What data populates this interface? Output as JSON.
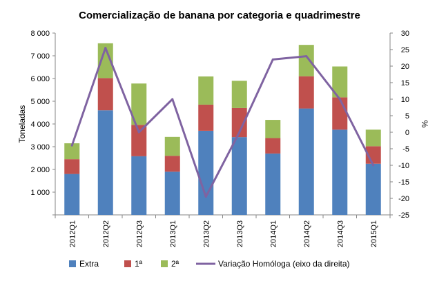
{
  "chart_data": {
    "type": "bar",
    "title": "Comercialização  de banana  por categoria  e quadrimestre",
    "ylabel": "Toneladas",
    "y2label": "%",
    "categories": [
      "2012Q1",
      "2012Q2",
      "2012Q3",
      "2013Q1",
      "2013Q2",
      "2013Q3",
      "2014Q1",
      "2014Q2",
      "2014Q3",
      "2015Q1"
    ],
    "ylim": [
      0,
      8000
    ],
    "y2lim": [
      -25,
      30
    ],
    "y_ticks": [
      "",
      "1 000",
      "2 000",
      "3 000",
      "4 000",
      "5 000",
      "6 000",
      "7 000",
      "8 000"
    ],
    "y2_ticks": [
      "-25",
      "-20",
      "-15",
      "-10",
      "-5",
      "0",
      "5",
      "10",
      "15",
      "20",
      "25",
      "30"
    ],
    "stacked": true,
    "series": [
      {
        "name": "Extra",
        "color": "#4F81BD",
        "values": [
          1800,
          4600,
          2580,
          1900,
          3700,
          3420,
          2700,
          4680,
          3750,
          2250
        ]
      },
      {
        "name": "1ª",
        "color": "#C0504D",
        "values": [
          650,
          1420,
          1380,
          700,
          1150,
          1280,
          680,
          1420,
          1420,
          770
        ]
      },
      {
        "name": "2ª",
        "color": "#9BBB59",
        "values": [
          700,
          1530,
          1820,
          830,
          1240,
          1200,
          800,
          1380,
          1360,
          730
        ]
      }
    ],
    "line_series": {
      "name": "Variação Homóloga (eixo da direita)",
      "color": "#7F63A1",
      "axis": "right",
      "values": [
        -4,
        25.5,
        0,
        10,
        -19.5,
        0,
        22,
        23,
        10,
        -10
      ]
    },
    "legend_position": "bottom",
    "grid": false
  }
}
